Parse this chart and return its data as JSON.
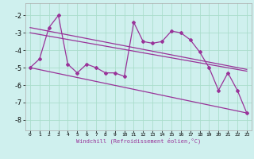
{
  "xlabel": "Windchill (Refroidissement éolien,°C)",
  "bg_color": "#cff0ee",
  "grid_color": "#aaddcc",
  "line_color": "#993399",
  "xlim": [
    -0.5,
    23.5
  ],
  "ylim": [
    -8.6,
    -1.3
  ],
  "yticks": [
    -8,
    -7,
    -6,
    -5,
    -4,
    -3,
    -2
  ],
  "xticks": [
    0,
    1,
    2,
    3,
    4,
    5,
    6,
    7,
    8,
    9,
    10,
    11,
    12,
    13,
    14,
    15,
    16,
    17,
    18,
    19,
    20,
    21,
    22,
    23
  ],
  "data_x": [
    0,
    1,
    2,
    3,
    4,
    5,
    6,
    7,
    8,
    9,
    10,
    11,
    12,
    13,
    14,
    15,
    16,
    17,
    18,
    19,
    20,
    21,
    22,
    23
  ],
  "data_y": [
    -5.0,
    -4.5,
    -2.7,
    -2.0,
    -4.8,
    -5.3,
    -4.8,
    -5.0,
    -5.3,
    -5.3,
    -5.5,
    -2.4,
    -3.5,
    -3.6,
    -3.5,
    -2.9,
    -3.0,
    -3.4,
    -4.1,
    -5.0,
    -6.3,
    -5.3,
    -6.3,
    -7.6
  ],
  "trend1_x": [
    0,
    23
  ],
  "trend1_y": [
    -2.7,
    -5.1
  ],
  "trend2_x": [
    0,
    23
  ],
  "trend2_y": [
    -3.0,
    -5.2
  ],
  "trend3_x": [
    0,
    23
  ],
  "trend3_y": [
    -5.0,
    -7.6
  ]
}
